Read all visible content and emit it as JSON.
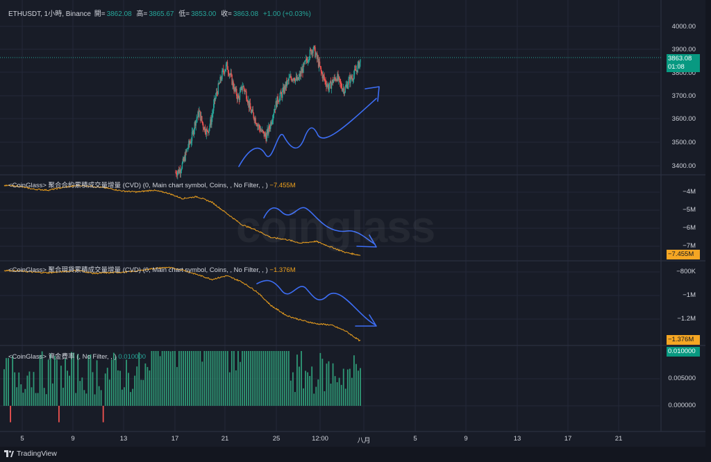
{
  "header": {
    "symbol": "ETHUSDT, 1小時, Binance",
    "open_label": "開=",
    "open": "3862.08",
    "high_label": "高=",
    "high": "3865.67",
    "low_label": "低=",
    "low": "3853.00",
    "close_label": "收=",
    "close": "3863.08",
    "change": "+1.00 (+0.03%)"
  },
  "panes": {
    "cvd_futures_label": "<CoinGlass> 聚合合約累積成交量增量 (CVD) (0, Main chart symbol, Coins, , No Filter, , )",
    "cvd_futures_value": "−7.455M",
    "cvd_spot_label": "<CoinGlass> 聚合現貨累積成交量增量 (CVD) (0, Main chart symbol, Coins, , No Filter, , )",
    "cvd_spot_value": "−1.376M",
    "funding_label": "<CoinGlass> 資金費率 (, No Filter, , )",
    "funding_value": "0.010000"
  },
  "price_axis": [
    "4000.00",
    "3900.00",
    "3800.00",
    "3700.00",
    "3600.00",
    "3500.00",
    "3400.00"
  ],
  "price_tag": {
    "price": "3863.08",
    "countdown": "01:08"
  },
  "cvd_futures_axis": [
    "−4M",
    "−5M",
    "−6M",
    "−7M"
  ],
  "cvd_futures_tag": "−7.455M",
  "cvd_spot_axis": [
    "−800K",
    "−1M",
    "−1.2M"
  ],
  "cvd_spot_tag": "−1.376M",
  "funding_axis": [
    "0.005000",
    "0.000000"
  ],
  "funding_tag": "0.010000",
  "x_axis": [
    "5",
    "9",
    "13",
    "17",
    "21",
    "25",
    "12:00",
    "八月",
    "5",
    "9",
    "13",
    "17",
    "21"
  ],
  "watermark": "coinglass",
  "footer": "TradingView",
  "colors": {
    "up": "#26a69a",
    "down": "#ef5350",
    "cvd": "#f0a21d",
    "annotation": "#3d6ef5",
    "funding": "#2f9a77"
  },
  "chart_data": [
    {
      "type": "candlestick",
      "title": "ETHUSDT, 1小時, Binance",
      "ylim": [
        3360,
        4050
      ],
      "x": [
        "17",
        "21",
        "25",
        "12:00"
      ],
      "close_series": [
        3370,
        3380,
        3420,
        3480,
        3520,
        3600,
        3640,
        3580,
        3550,
        3600,
        3700,
        3760,
        3820,
        3850,
        3800,
        3740,
        3700,
        3760,
        3720,
        3650,
        3620,
        3580,
        3550,
        3530,
        3580,
        3650,
        3700,
        3720,
        3760,
        3790,
        3800,
        3780,
        3820,
        3860,
        3900,
        3930,
        3880,
        3820,
        3780,
        3750,
        3780,
        3800,
        3760,
        3740,
        3780,
        3800,
        3830,
        3870
      ],
      "last": 3863.08
    },
    {
      "type": "line",
      "title": "聚合合約累積成交量增量 (CVD)",
      "unit": "M",
      "ylim": [
        -7.6,
        -3.5
      ],
      "last": -7.455
    },
    {
      "type": "line",
      "title": "聚合現貨累積成交量增量 (CVD)",
      "unit": "K",
      "ylim": [
        -1400,
        -740
      ],
      "last": -1376
    },
    {
      "type": "bar",
      "title": "資金費率",
      "ylim": [
        -0.004,
        0.0105
      ],
      "last": 0.01
    }
  ]
}
